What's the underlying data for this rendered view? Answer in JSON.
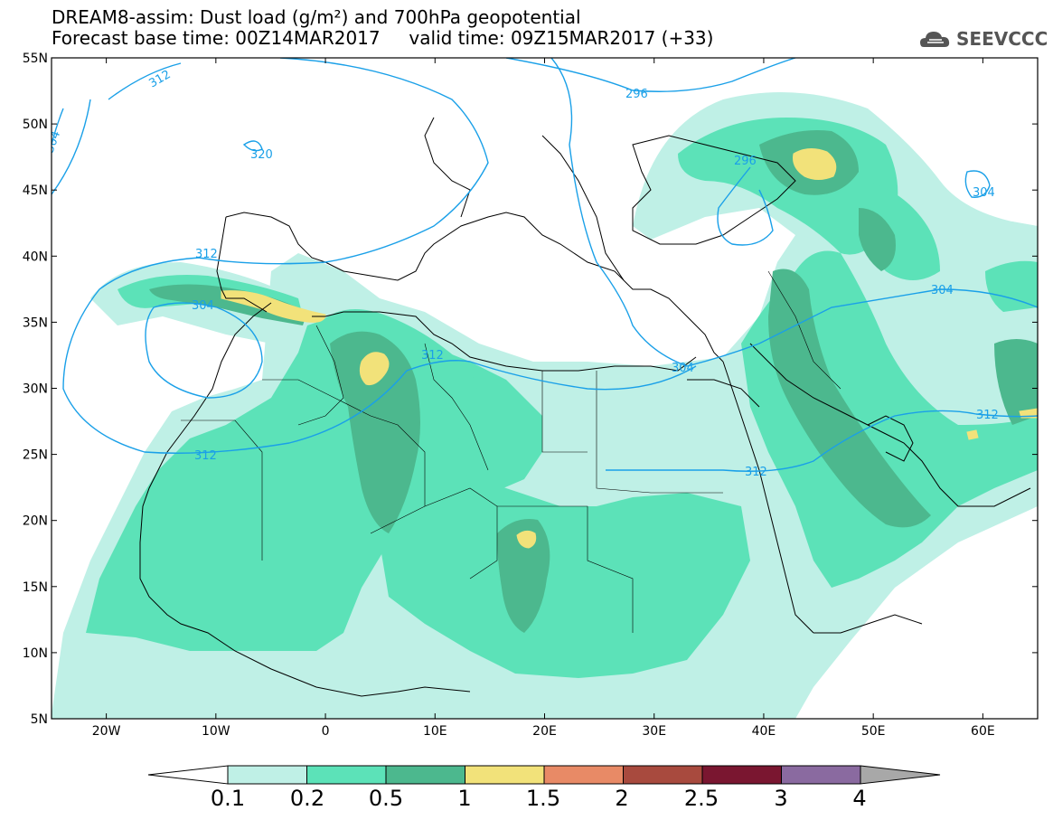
{
  "title_line1": "DREAM8-assim: Dust load (g/m²) and 700hPa geopotential",
  "title_line2": "Forecast base time: 00Z14MAR2017     valid time: 09Z15MAR2017 (+33)",
  "logo_text": "SEEVCCC",
  "logo_icon": "cloud-logo-icon",
  "map": {
    "lon_range": [
      -25,
      65
    ],
    "lat_range": [
      5,
      55
    ],
    "lat_ticks": [
      "5N",
      "10N",
      "15N",
      "20N",
      "25N",
      "30N",
      "35N",
      "40N",
      "45N",
      "50N",
      "55N"
    ],
    "lon_ticks": [
      "20W",
      "10W",
      "0",
      "10E",
      "20E",
      "30E",
      "40E",
      "50E",
      "60E"
    ],
    "contour_labels": [
      "312",
      "304",
      "320",
      "296",
      "296",
      "304",
      "312",
      "304",
      "304",
      "312",
      "312",
      "312",
      "304",
      "312"
    ]
  },
  "colorbar": {
    "labels": [
      "0.1",
      "0.2",
      "0.5",
      "1",
      "1.5",
      "2",
      "2.5",
      "3",
      "4"
    ],
    "colors": [
      "#ffffff",
      "#bff0e6",
      "#5ce2b8",
      "#4cb88e",
      "#f2e27a",
      "#e88a66",
      "#a84a3e",
      "#7a1630",
      "#8a6aa0",
      "#a8a8a8"
    ]
  }
}
